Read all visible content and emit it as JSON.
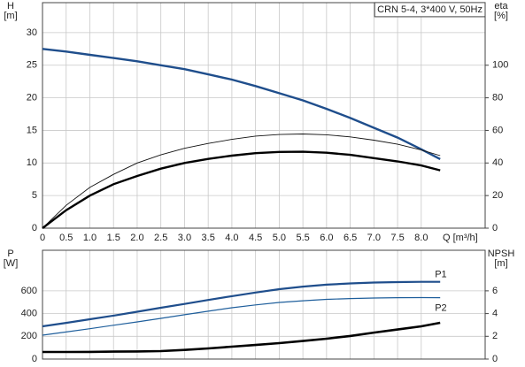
{
  "chart_data": [
    {
      "type": "line",
      "annotation": "CRN 5-4, 3*400 V, 50Hz",
      "ylabel": "H",
      "yunit": "[m]",
      "y2label": "eta",
      "y2unit": "[%]",
      "xlabel": "Q [m³/h]",
      "x": [
        0,
        0.5,
        1,
        1.5,
        2,
        2.5,
        3,
        3.5,
        4,
        4.5,
        5,
        5.5,
        6,
        6.5,
        7,
        7.5,
        8,
        8.4
      ],
      "xlim": [
        0,
        9.35
      ],
      "ylim": [
        0,
        34.6
      ],
      "y2lim": [
        0,
        138.4
      ],
      "grid": true,
      "xticks": [
        0,
        0.5,
        {
          "value": 1,
          "label": "1.0"
        },
        1.5,
        {
          "value": 2,
          "label": "2.0"
        },
        2.5,
        {
          "value": 3,
          "label": "3.0"
        },
        3.5,
        {
          "value": 4,
          "label": "4.0"
        },
        4.5,
        {
          "value": 5,
          "label": "5.0"
        },
        5.5,
        {
          "value": 6,
          "label": "6.0"
        },
        6.5,
        {
          "value": 7,
          "label": "7.0"
        },
        7.5,
        {
          "value": 8,
          "label": "8.0"
        }
      ],
      "yticks": [
        0,
        5,
        10,
        15,
        20,
        25,
        30
      ],
      "y2ticks": [
        0,
        20,
        40,
        60,
        80,
        100
      ],
      "series": [
        {
          "color": "#1f4e8c",
          "values": [
            27.5,
            27.1,
            26.6,
            26.1,
            25.6,
            25.0,
            24.4,
            23.6,
            22.8,
            21.8,
            20.7,
            19.6,
            18.3,
            16.9,
            15.4,
            13.9,
            12.1,
            10.6
          ]
        },
        {
          "color": "#111111",
          "axis": "y2",
          "values": [
            0,
            14,
            25,
            33,
            40,
            45,
            49,
            52,
            54.5,
            56.5,
            57.5,
            57.8,
            57.3,
            56,
            54,
            51.5,
            48,
            44.5
          ]
        },
        {
          "color": "#000000",
          "axis": "y2",
          "values": [
            0,
            11,
            20,
            27,
            32,
            36.5,
            40,
            42.5,
            44.5,
            46,
            46.8,
            46.9,
            46.3,
            45,
            43,
            41,
            38.5,
            35.5
          ]
        }
      ]
    },
    {
      "type": "line",
      "ylabel": "P",
      "yunit": "[W]",
      "y2label": "NPSH",
      "y2unit": "[m]",
      "x": [
        0,
        0.5,
        1,
        1.5,
        2,
        2.5,
        3,
        3.5,
        4,
        4.5,
        5,
        5.5,
        6,
        6.5,
        7,
        7.5,
        8,
        8.4
      ],
      "xlim": [
        0,
        9.35
      ],
      "ylim": [
        0,
        957
      ],
      "y2lim": [
        0,
        9.57
      ],
      "grid": true,
      "xticks": [
        0,
        0.5,
        1,
        1.5,
        2,
        2.5,
        3,
        3.5,
        4,
        4.5,
        5,
        5.5,
        6,
        6.5,
        7,
        7.5,
        8
      ],
      "yticks": [
        0,
        200,
        400,
        600
      ],
      "y2ticks": [
        0,
        2,
        4,
        6
      ],
      "series": [
        {
          "name": "P1",
          "color": "#1f4e8c",
          "values": [
            288,
            318,
            350,
            382,
            416,
            451,
            485,
            520,
            553,
            585,
            615,
            637,
            654,
            665,
            673,
            677,
            679,
            679
          ]
        },
        {
          "name": "P2",
          "color": "#1f5f9c",
          "values": [
            210,
            238,
            267,
            297,
            327,
            358,
            390,
            421,
            451,
            476,
            498,
            513,
            525,
            532,
            537,
            540,
            541,
            540
          ]
        },
        {
          "color": "#000000",
          "axis": "y2",
          "values": [
            0.62,
            0.62,
            0.63,
            0.65,
            0.67,
            0.7,
            0.8,
            0.93,
            1.09,
            1.24,
            1.4,
            1.59,
            1.79,
            2.03,
            2.33,
            2.6,
            2.88,
            3.19
          ]
        }
      ]
    }
  ]
}
